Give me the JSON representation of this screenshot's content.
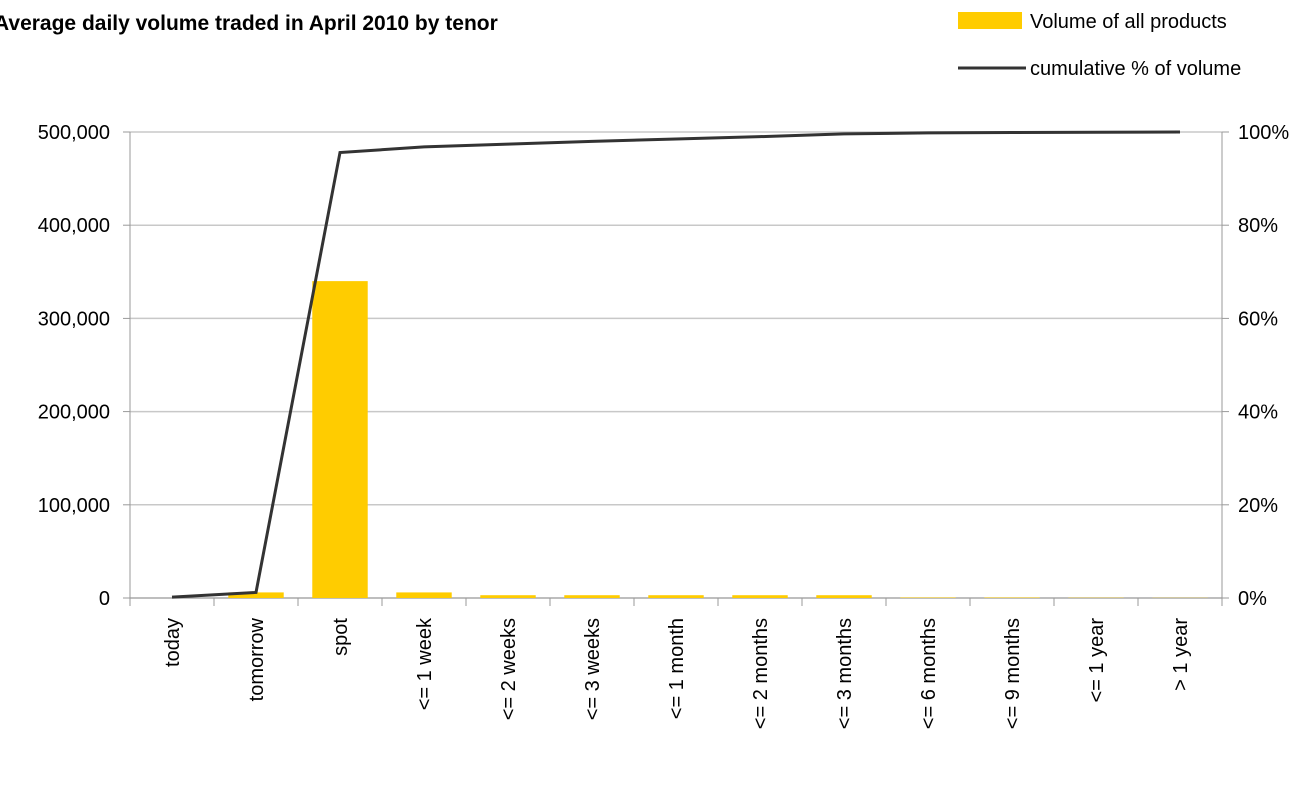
{
  "chart_data": {
    "type": "bar",
    "title": "Average daily volume traded in April 2010 by tenor",
    "categories": [
      "today",
      "tomorrow",
      "spot",
      "<= 1 week",
      "<= 2 weeks",
      "<= 3 weeks",
      "<= 1 month",
      "<= 2 months",
      "<= 3 months",
      "<= 6 months",
      "<= 9 months",
      "<= 1 year",
      "> 1 year"
    ],
    "series": [
      {
        "name": "Volume of all products",
        "type": "bar",
        "color": "#ffcc00",
        "values": [
          0,
          6000,
          340000,
          6000,
          3000,
          3000,
          3000,
          3000,
          3000,
          500,
          500,
          300,
          200
        ]
      },
      {
        "name": "cumulative % of volume",
        "type": "line",
        "axis": "y2",
        "color": "#333333",
        "values": [
          0.2,
          1.2,
          95.6,
          96.8,
          97.4,
          98.0,
          98.5,
          99.0,
          99.6,
          99.8,
          99.9,
          99.95,
          100
        ]
      }
    ],
    "ylim": [
      0,
      500000
    ],
    "yticks": [
      0,
      {
        "value": 100000,
        "label": "100,000"
      },
      {
        "value": 200000,
        "label": "200,000"
      },
      {
        "value": 300000,
        "label": "300,000"
      },
      {
        "value": 400000,
        "label": "400,000"
      },
      {
        "value": 500000,
        "label": "500,000"
      }
    ],
    "y2lim": [
      0,
      100
    ],
    "y2ticks": [
      {
        "value": 0,
        "label": "0%"
      },
      {
        "value": 20,
        "label": "20%"
      },
      {
        "value": 40,
        "label": "40%"
      },
      {
        "value": 60,
        "label": "60%"
      },
      {
        "value": 80,
        "label": "80%"
      },
      {
        "value": 100,
        "label": "100%"
      }
    ],
    "grid": true,
    "legend": "top-right"
  }
}
